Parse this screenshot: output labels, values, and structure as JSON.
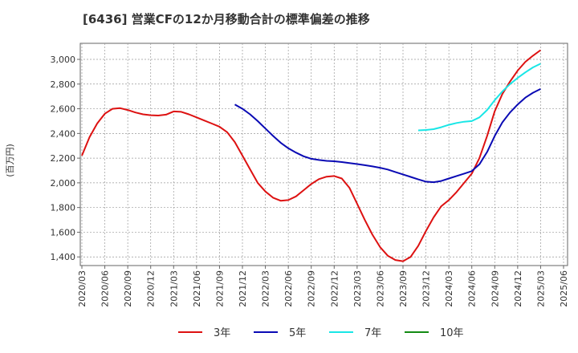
{
  "chart_data": {
    "type": "line",
    "title": "[6436]  営業CFの12か月移動合計の標準偏差の推移",
    "ylabel": "(百万円)",
    "xlabel": "",
    "ylim": [
      1330,
      3130
    ],
    "yticks": [
      "1,400",
      "1,600",
      "1,800",
      "2,000",
      "2,200",
      "2,400",
      "2,600",
      "2,800",
      "3,000"
    ],
    "ytick_values": [
      1400,
      1600,
      1800,
      2000,
      2200,
      2400,
      2600,
      2800,
      3000
    ],
    "xticks": [
      "2020/03",
      "2020/06",
      "2020/09",
      "2020/12",
      "2021/03",
      "2021/06",
      "2021/09",
      "2021/12",
      "2022/03",
      "2022/06",
      "2022/09",
      "2022/12",
      "2023/03",
      "2023/06",
      "2023/09",
      "2023/12",
      "2024/03",
      "2024/06",
      "2024/09",
      "2024/12",
      "2025/03",
      "2025/06"
    ],
    "grid": true,
    "legend_position": "bottom",
    "series": [
      {
        "name": "3年",
        "color": "#dd1111",
        "points": [
          [
            "2020/03",
            2220
          ],
          [
            "2020/04",
            2370
          ],
          [
            "2020/05",
            2480
          ],
          [
            "2020/06",
            2560
          ],
          [
            "2020/07",
            2600
          ],
          [
            "2020/08",
            2605
          ],
          [
            "2020/09",
            2590
          ],
          [
            "2020/10",
            2570
          ],
          [
            "2020/11",
            2555
          ],
          [
            "2020/12",
            2548
          ],
          [
            "2021/01",
            2545
          ],
          [
            "2021/02",
            2552
          ],
          [
            "2021/03",
            2578
          ],
          [
            "2021/04",
            2575
          ],
          [
            "2021/05",
            2555
          ],
          [
            "2021/06",
            2530
          ],
          [
            "2021/07",
            2505
          ],
          [
            "2021/08",
            2480
          ],
          [
            "2021/09",
            2455
          ],
          [
            "2021/10",
            2410
          ],
          [
            "2021/11",
            2330
          ],
          [
            "2021/12",
            2220
          ],
          [
            "2022/01",
            2110
          ],
          [
            "2022/02",
            2000
          ],
          [
            "2022/03",
            1930
          ],
          [
            "2022/04",
            1880
          ],
          [
            "2022/05",
            1855
          ],
          [
            "2022/06",
            1860
          ],
          [
            "2022/07",
            1890
          ],
          [
            "2022/08",
            1940
          ],
          [
            "2022/09",
            1990
          ],
          [
            "2022/10",
            2030
          ],
          [
            "2022/11",
            2050
          ],
          [
            "2022/12",
            2055
          ],
          [
            "2023/01",
            2035
          ],
          [
            "2023/02",
            1960
          ],
          [
            "2023/03",
            1830
          ],
          [
            "2023/04",
            1700
          ],
          [
            "2023/05",
            1580
          ],
          [
            "2023/06",
            1480
          ],
          [
            "2023/07",
            1410
          ],
          [
            "2023/08",
            1375
          ],
          [
            "2023/09",
            1365
          ],
          [
            "2023/10",
            1400
          ],
          [
            "2023/11",
            1490
          ],
          [
            "2023/12",
            1610
          ],
          [
            "2024/01",
            1720
          ],
          [
            "2024/02",
            1810
          ],
          [
            "2024/03",
            1860
          ],
          [
            "2024/04",
            1925
          ],
          [
            "2024/05",
            2000
          ],
          [
            "2024/06",
            2075
          ],
          [
            "2024/07",
            2200
          ],
          [
            "2024/08",
            2380
          ],
          [
            "2024/09",
            2580
          ],
          [
            "2024/10",
            2720
          ],
          [
            "2024/11",
            2820
          ],
          [
            "2024/12",
            2910
          ],
          [
            "2025/01",
            2980
          ],
          [
            "2025/02",
            3030
          ],
          [
            "2025/03",
            3075
          ]
        ]
      },
      {
        "name": "5年",
        "color": "#0a0ab4",
        "points": [
          [
            "2021/11",
            2635
          ],
          [
            "2021/12",
            2600
          ],
          [
            "2022/01",
            2555
          ],
          [
            "2022/02",
            2500
          ],
          [
            "2022/03",
            2440
          ],
          [
            "2022/04",
            2380
          ],
          [
            "2022/05",
            2325
          ],
          [
            "2022/06",
            2280
          ],
          [
            "2022/07",
            2245
          ],
          [
            "2022/08",
            2215
          ],
          [
            "2022/09",
            2195
          ],
          [
            "2022/10",
            2185
          ],
          [
            "2022/11",
            2178
          ],
          [
            "2022/12",
            2175
          ],
          [
            "2023/01",
            2168
          ],
          [
            "2023/02",
            2160
          ],
          [
            "2023/03",
            2152
          ],
          [
            "2023/04",
            2143
          ],
          [
            "2023/05",
            2133
          ],
          [
            "2023/06",
            2122
          ],
          [
            "2023/07",
            2108
          ],
          [
            "2023/08",
            2088
          ],
          [
            "2023/09",
            2068
          ],
          [
            "2023/10",
            2048
          ],
          [
            "2023/11",
            2028
          ],
          [
            "2023/12",
            2010
          ],
          [
            "2024/01",
            2005
          ],
          [
            "2024/02",
            2015
          ],
          [
            "2024/03",
            2035
          ],
          [
            "2024/04",
            2055
          ],
          [
            "2024/05",
            2075
          ],
          [
            "2024/06",
            2095
          ],
          [
            "2024/07",
            2150
          ],
          [
            "2024/08",
            2250
          ],
          [
            "2024/09",
            2380
          ],
          [
            "2024/10",
            2490
          ],
          [
            "2024/11",
            2570
          ],
          [
            "2024/12",
            2635
          ],
          [
            "2025/01",
            2690
          ],
          [
            "2025/02",
            2730
          ],
          [
            "2025/03",
            2760
          ]
        ]
      },
      {
        "name": "7年",
        "color": "#19e6e6",
        "points": [
          [
            "2023/11",
            2425
          ],
          [
            "2023/12",
            2428
          ],
          [
            "2024/01",
            2435
          ],
          [
            "2024/02",
            2450
          ],
          [
            "2024/03",
            2470
          ],
          [
            "2024/04",
            2485
          ],
          [
            "2024/05",
            2495
          ],
          [
            "2024/06",
            2500
          ],
          [
            "2024/07",
            2530
          ],
          [
            "2024/08",
            2590
          ],
          [
            "2024/09",
            2670
          ],
          [
            "2024/10",
            2740
          ],
          [
            "2024/11",
            2800
          ],
          [
            "2024/12",
            2850
          ],
          [
            "2025/01",
            2895
          ],
          [
            "2025/02",
            2935
          ],
          [
            "2025/03",
            2965
          ]
        ]
      },
      {
        "name": "10年",
        "color": "#138a13",
        "points": []
      }
    ]
  }
}
